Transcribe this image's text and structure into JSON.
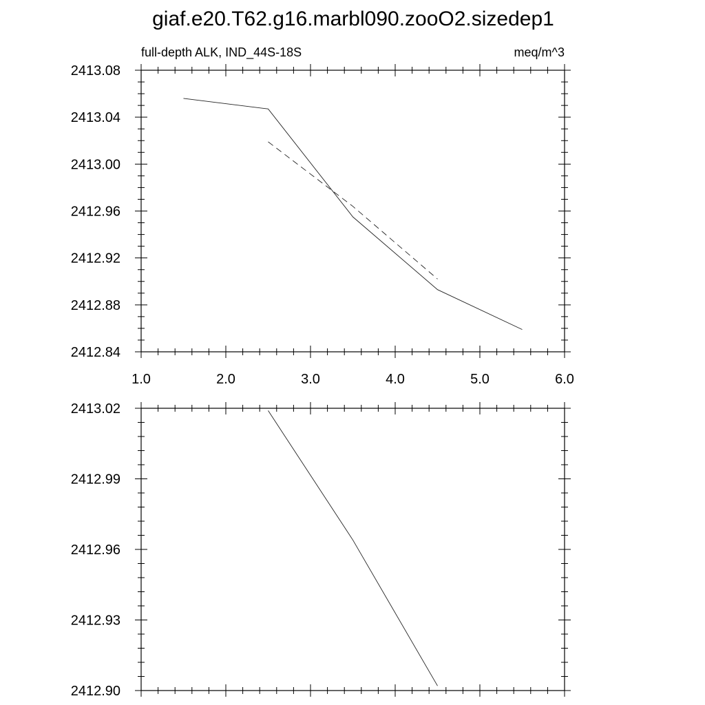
{
  "figure": {
    "title": "giaf.e20.T62.g16.marbl090.zooO2.sizedep1"
  },
  "chart_data": [
    {
      "type": "line",
      "subtitle_left": "full-depth ALK, IND_44S-18S",
      "subtitle_right": "meq/m^3",
      "xlim": [
        1.0,
        6.0
      ],
      "ylim": [
        2412.84,
        2413.08
      ],
      "x_ticks": [
        1.0,
        2.0,
        3.0,
        4.0,
        5.0,
        6.0
      ],
      "x_tick_labels": [
        "1.0",
        "2.0",
        "3.0",
        "4.0",
        "5.0",
        "6.0"
      ],
      "y_ticks": [
        2412.84,
        2412.88,
        2412.92,
        2412.96,
        2413.0,
        2413.04,
        2413.08
      ],
      "y_tick_labels": [
        "2412.84",
        "2412.88",
        "2412.92",
        "2412.96",
        "2413.00",
        "2413.04",
        "2413.08"
      ],
      "grid": false,
      "series": [
        {
          "style": "solid",
          "x": [
            1.5,
            2.5,
            3.5,
            4.5,
            5.5
          ],
          "y": [
            2413.056,
            2413.047,
            2412.955,
            2412.893,
            2412.859
          ]
        },
        {
          "style": "dashed",
          "x": [
            2.5,
            3.5,
            4.5
          ],
          "y": [
            2413.019,
            2412.964,
            2412.902
          ]
        }
      ]
    },
    {
      "type": "line",
      "xlim": [
        1.0,
        6.0
      ],
      "ylim": [
        2412.9,
        2413.02
      ],
      "x_ticks": [
        1.0,
        2.0,
        3.0,
        4.0,
        5.0,
        6.0
      ],
      "y_ticks": [
        2412.9,
        2412.93,
        2412.96,
        2412.99,
        2413.02
      ],
      "y_tick_labels": [
        "2412.90",
        "2412.93",
        "2412.96",
        "2412.99",
        "2413.02"
      ],
      "grid": false,
      "series": [
        {
          "style": "solid",
          "x": [
            2.5,
            3.5,
            4.5
          ],
          "y": [
            2413.019,
            2412.964,
            2412.902
          ]
        }
      ]
    }
  ]
}
